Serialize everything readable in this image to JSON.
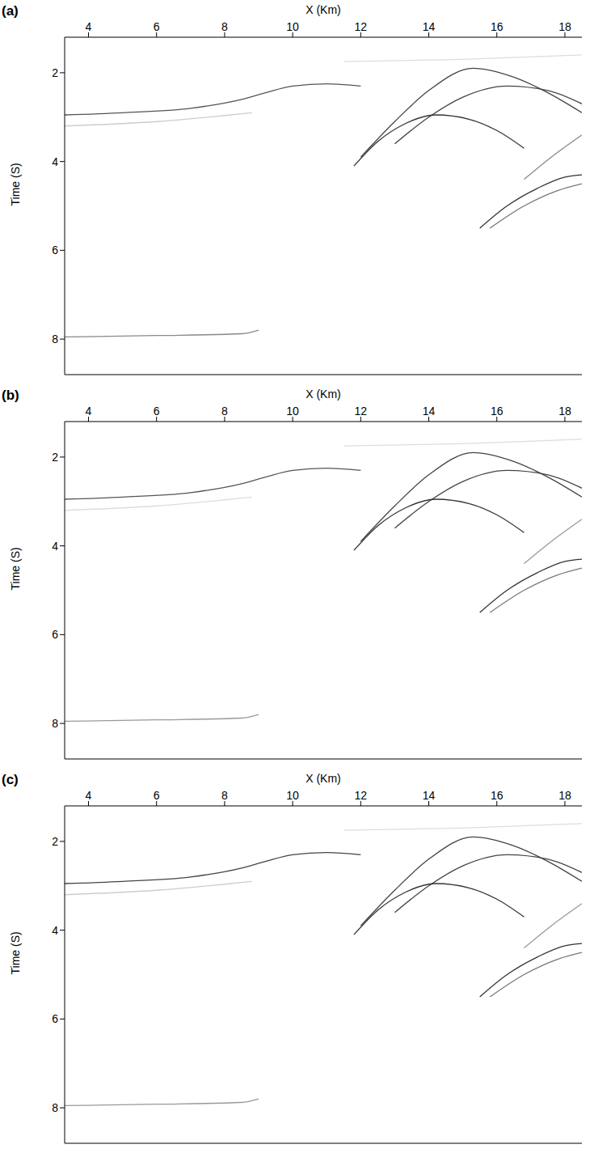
{
  "chart_data": [
    {
      "type": "line",
      "title": "(a)",
      "x_label": "X (Km)",
      "y_label": "Time (S)",
      "xlim": [
        3.3,
        18.5
      ],
      "ylim": [
        1.2,
        8.8
      ],
      "xticks": [
        4,
        6,
        8,
        10,
        12,
        14,
        16,
        18
      ],
      "yticks": [
        2,
        4,
        6,
        8
      ],
      "grid": false,
      "series": [
        {
          "color": "#555555",
          "x": [
            3.3,
            5,
            7,
            8.5,
            9.2,
            10,
            11,
            12
          ],
          "values": [
            2.95,
            2.9,
            2.8,
            2.6,
            2.45,
            2.3,
            2.25,
            2.3
          ]
        },
        {
          "color": "#cccccc",
          "x": [
            3.3,
            6,
            8.8
          ],
          "values": [
            3.2,
            3.1,
            2.9
          ]
        },
        {
          "color": "#444444",
          "x": [
            12,
            13,
            14,
            15.3,
            16.5,
            17.5,
            18.5
          ],
          "values": [
            3.9,
            3.1,
            2.4,
            1.9,
            2.1,
            2.45,
            2.9
          ]
        },
        {
          "color": "#444444",
          "x": [
            13,
            14,
            15,
            16.3,
            17.5,
            18.5
          ],
          "values": [
            3.6,
            3.0,
            2.55,
            2.3,
            2.4,
            2.7
          ]
        },
        {
          "color": "#333333",
          "x": [
            11.8,
            12.5,
            13.3,
            14.2,
            15.2,
            16,
            16.8
          ],
          "values": [
            4.1,
            3.55,
            3.15,
            2.95,
            3.05,
            3.3,
            3.7
          ]
        },
        {
          "color": "#333333",
          "x": [
            15.5,
            16.3,
            17.2,
            18,
            18.5
          ],
          "values": [
            5.5,
            5.0,
            4.6,
            4.35,
            4.3
          ]
        },
        {
          "color": "#777777",
          "x": [
            15.8,
            16.8,
            17.8,
            18.5
          ],
          "values": [
            5.5,
            5.0,
            4.65,
            4.5
          ]
        },
        {
          "color": "#888888",
          "x": [
            16.8,
            17.6,
            18.5
          ],
          "values": [
            4.4,
            3.9,
            3.4
          ]
        },
        {
          "color": "#888888",
          "x": [
            3.3,
            6,
            8.5,
            9
          ],
          "values": [
            7.95,
            7.92,
            7.88,
            7.8
          ]
        },
        {
          "color": "#dddddd",
          "x": [
            11.5,
            15,
            18.5
          ],
          "values": [
            1.75,
            1.7,
            1.6
          ]
        }
      ]
    },
    {
      "type": "line",
      "title": "(b)",
      "x_label": "X (Km)",
      "y_label": "Time (S)",
      "xlim": [
        3.3,
        18.5
      ],
      "ylim": [
        1.2,
        8.8
      ],
      "xticks": [
        4,
        6,
        8,
        10,
        12,
        14,
        16,
        18
      ],
      "yticks": [
        2,
        4,
        6,
        8
      ],
      "grid": false,
      "series": [
        {
          "color": "#555555",
          "x": [
            3.3,
            5,
            7,
            8.5,
            9.2,
            10,
            11,
            12
          ],
          "values": [
            2.95,
            2.9,
            2.8,
            2.6,
            2.45,
            2.3,
            2.25,
            2.3
          ]
        },
        {
          "color": "#dddddd",
          "x": [
            3.3,
            6,
            8.8
          ],
          "values": [
            3.2,
            3.1,
            2.9
          ]
        },
        {
          "color": "#444444",
          "x": [
            12,
            13,
            14,
            15.3,
            16.5,
            17.5,
            18.5
          ],
          "values": [
            3.9,
            3.1,
            2.4,
            1.9,
            2.1,
            2.45,
            2.9
          ]
        },
        {
          "color": "#444444",
          "x": [
            13,
            14,
            15,
            16.3,
            17.5,
            18.5
          ],
          "values": [
            3.6,
            3.0,
            2.55,
            2.3,
            2.4,
            2.7
          ]
        },
        {
          "color": "#333333",
          "x": [
            11.8,
            12.5,
            13.3,
            14.2,
            15.2,
            16,
            16.8
          ],
          "values": [
            4.1,
            3.55,
            3.15,
            2.95,
            3.05,
            3.3,
            3.7
          ]
        },
        {
          "color": "#333333",
          "x": [
            15.5,
            16.3,
            17.2,
            18,
            18.5
          ],
          "values": [
            5.5,
            5.0,
            4.6,
            4.35,
            4.3
          ]
        },
        {
          "color": "#777777",
          "x": [
            15.8,
            16.8,
            17.8,
            18.5
          ],
          "values": [
            5.5,
            5.0,
            4.65,
            4.5
          ]
        },
        {
          "color": "#999999",
          "x": [
            16.8,
            17.6,
            18.5
          ],
          "values": [
            4.4,
            3.9,
            3.4
          ]
        },
        {
          "color": "#999999",
          "x": [
            3.3,
            6,
            8.5,
            9
          ],
          "values": [
            7.95,
            7.92,
            7.88,
            7.8
          ]
        },
        {
          "color": "#dddddd",
          "x": [
            11.5,
            15,
            18.5
          ],
          "values": [
            1.75,
            1.7,
            1.6
          ]
        }
      ]
    },
    {
      "type": "line",
      "title": "(c)",
      "x_label": "X (Km)",
      "y_label": "Time (S)",
      "xlim": [
        3.3,
        18.5
      ],
      "ylim": [
        1.2,
        8.8
      ],
      "xticks": [
        4,
        6,
        8,
        10,
        12,
        14,
        16,
        18
      ],
      "yticks": [
        2,
        4,
        6,
        8
      ],
      "grid": false,
      "series": [
        {
          "color": "#444444",
          "x": [
            3.3,
            5,
            7,
            8.5,
            9.2,
            10,
            11,
            12
          ],
          "values": [
            2.95,
            2.9,
            2.8,
            2.6,
            2.45,
            2.3,
            2.25,
            2.3
          ]
        },
        {
          "color": "#cccccc",
          "x": [
            3.3,
            6,
            8.8
          ],
          "values": [
            3.2,
            3.1,
            2.9
          ]
        },
        {
          "color": "#444444",
          "x": [
            12,
            13,
            14,
            15.3,
            16.5,
            17.5,
            18.5
          ],
          "values": [
            3.9,
            3.1,
            2.4,
            1.9,
            2.1,
            2.45,
            2.9
          ]
        },
        {
          "color": "#444444",
          "x": [
            13,
            14,
            15,
            16.3,
            17.5,
            18.5
          ],
          "values": [
            3.6,
            3.0,
            2.55,
            2.3,
            2.4,
            2.7
          ]
        },
        {
          "color": "#333333",
          "x": [
            11.8,
            12.5,
            13.3,
            14.2,
            15.2,
            16,
            16.8
          ],
          "values": [
            4.1,
            3.55,
            3.15,
            2.95,
            3.05,
            3.3,
            3.7
          ]
        },
        {
          "color": "#333333",
          "x": [
            15.5,
            16.3,
            17.2,
            18,
            18.5
          ],
          "values": [
            5.5,
            5.0,
            4.6,
            4.35,
            4.3
          ]
        },
        {
          "color": "#777777",
          "x": [
            15.8,
            16.8,
            17.8,
            18.5
          ],
          "values": [
            5.5,
            5.0,
            4.65,
            4.5
          ]
        },
        {
          "color": "#999999",
          "x": [
            16.8,
            17.6,
            18.5
          ],
          "values": [
            4.4,
            3.9,
            3.4
          ]
        },
        {
          "color": "#999999",
          "x": [
            3.3,
            6,
            8.5,
            9
          ],
          "values": [
            7.95,
            7.92,
            7.88,
            7.8
          ]
        },
        {
          "color": "#dddddd",
          "x": [
            11.5,
            15,
            18.5
          ],
          "values": [
            1.75,
            1.7,
            1.6
          ]
        }
      ]
    }
  ]
}
